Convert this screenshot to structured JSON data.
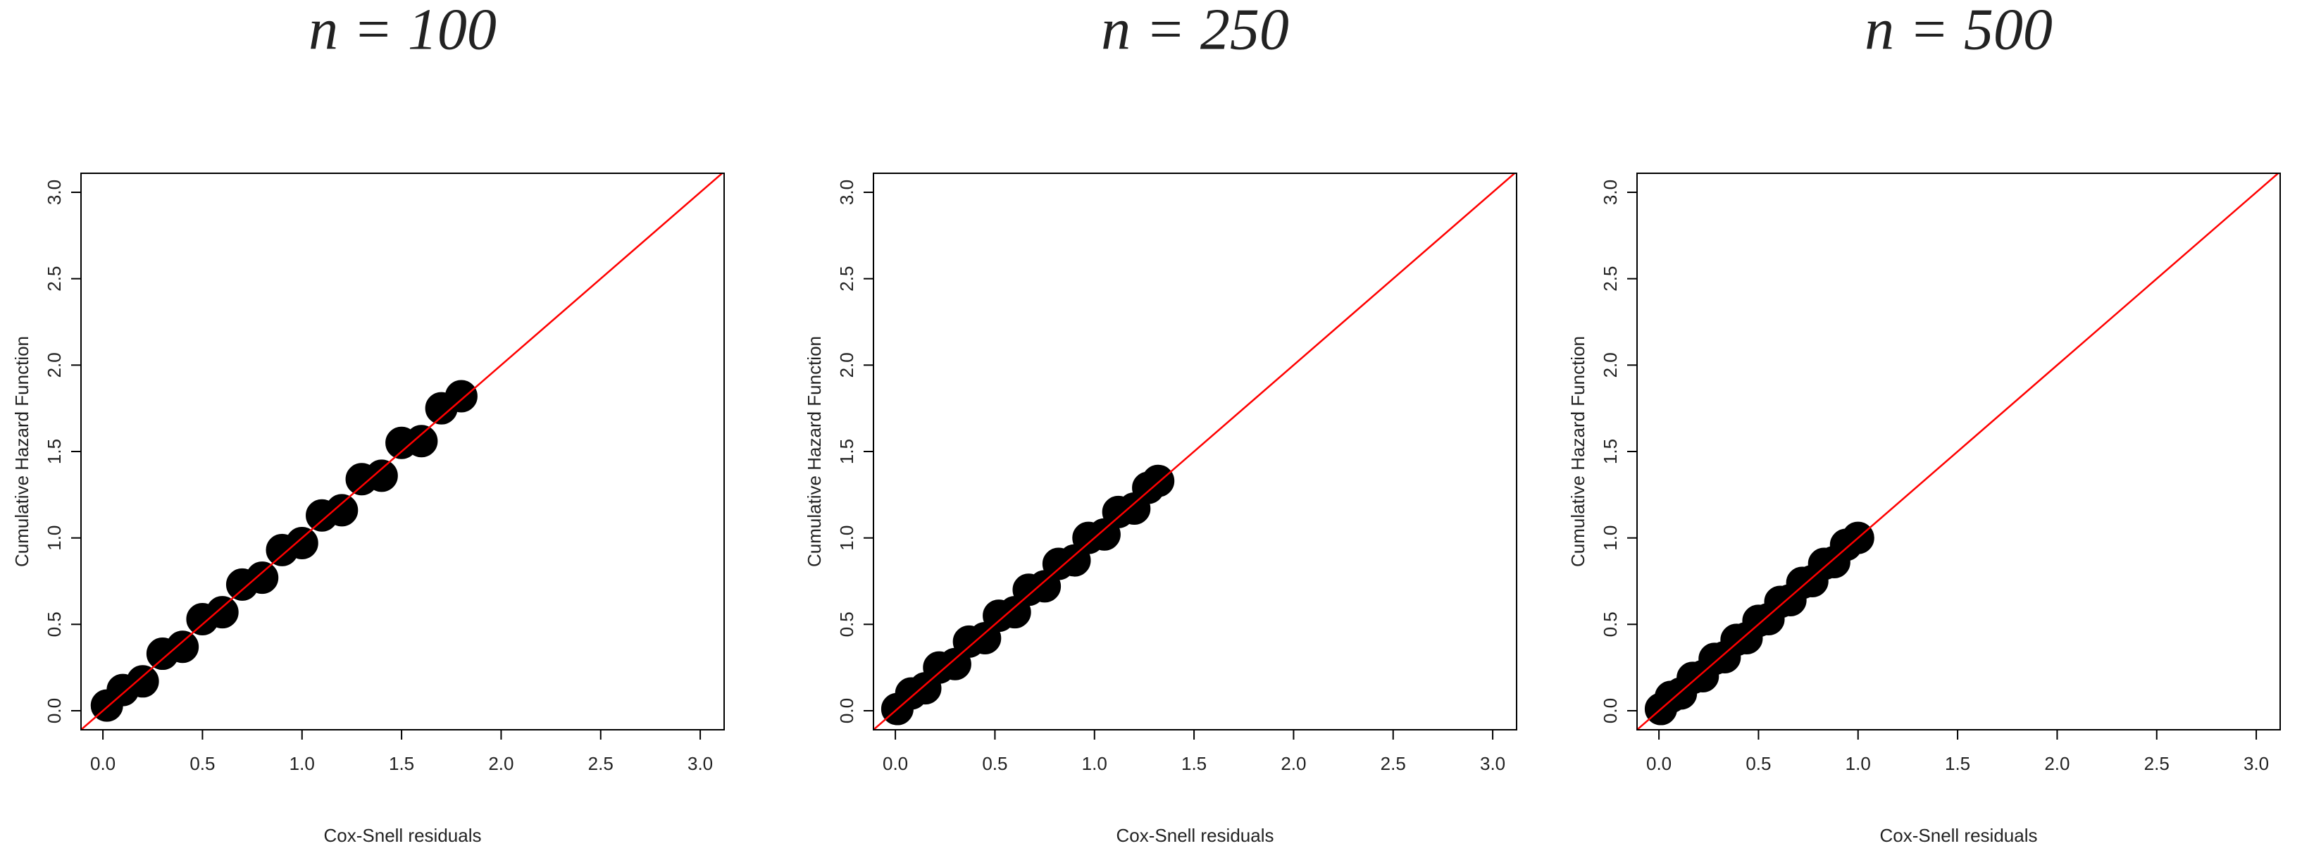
{
  "chart_data": [
    {
      "type": "scatter",
      "title": "n = 100",
      "x_label": "Cox-Snell residuals",
      "y_label": "Cumulative Hazard Function",
      "x": [
        0.02,
        0.1,
        0.2,
        0.3,
        0.4,
        0.5,
        0.6,
        0.7,
        0.8,
        0.9,
        1.0,
        1.1,
        1.2,
        1.3,
        1.4,
        1.5,
        1.6,
        1.7,
        1.8
      ],
      "y": [
        0.03,
        0.12,
        0.17,
        0.33,
        0.37,
        0.53,
        0.57,
        0.73,
        0.77,
        0.93,
        0.97,
        1.13,
        1.16,
        1.34,
        1.36,
        1.55,
        1.56,
        1.75,
        1.82
      ],
      "color": "#000000",
      "reference_line_color": "#ff0000",
      "xlim": [
        -0.11,
        3.12
      ],
      "ylim": [
        -0.11,
        3.11
      ],
      "xticks": [
        {
          "value": 0,
          "label": "0.0"
        },
        0.5,
        {
          "value": 1,
          "label": "1.0"
        },
        1.5,
        {
          "value": 2,
          "label": "2.0"
        },
        2.5,
        {
          "value": 3,
          "label": "3.0"
        }
      ],
      "yticks": [
        {
          "value": 0,
          "label": "0.0"
        },
        0.5,
        {
          "value": 1,
          "label": "1.0"
        },
        1.5,
        {
          "value": 2,
          "label": "2.0"
        },
        2.5,
        {
          "value": 3,
          "label": "3.0"
        }
      ]
    },
    {
      "type": "scatter",
      "title": "n = 250",
      "x_label": "Cox-Snell residuals",
      "y_label": "Cumulative Hazard Function",
      "x": [
        0.01,
        0.08,
        0.15,
        0.22,
        0.3,
        0.37,
        0.45,
        0.52,
        0.6,
        0.67,
        0.75,
        0.82,
        0.9,
        0.97,
        1.05,
        1.12,
        1.2,
        1.27,
        1.32
      ],
      "y": [
        0.01,
        0.1,
        0.13,
        0.25,
        0.27,
        0.4,
        0.42,
        0.55,
        0.57,
        0.7,
        0.72,
        0.85,
        0.87,
        1.0,
        1.02,
        1.15,
        1.17,
        1.29,
        1.33
      ],
      "color": "#000000",
      "reference_line_color": "#ff0000",
      "xlim": [
        -0.11,
        3.12
      ],
      "ylim": [
        -0.11,
        3.11
      ],
      "xticks": [
        {
          "value": 0,
          "label": "0.0"
        },
        0.5,
        {
          "value": 1,
          "label": "1.0"
        },
        1.5,
        {
          "value": 2,
          "label": "2.0"
        },
        2.5,
        {
          "value": 3,
          "label": "3.0"
        }
      ],
      "yticks": [
        {
          "value": 0,
          "label": "0.0"
        },
        0.5,
        {
          "value": 1,
          "label": "1.0"
        },
        1.5,
        {
          "value": 2,
          "label": "2.0"
        },
        2.5,
        {
          "value": 3,
          "label": "3.0"
        }
      ]
    },
    {
      "type": "scatter",
      "title": "n = 500",
      "x_label": "Cox-Snell residuals",
      "y_label": "Cumulative Hazard Function",
      "x": [
        0.01,
        0.06,
        0.11,
        0.17,
        0.22,
        0.28,
        0.33,
        0.39,
        0.44,
        0.5,
        0.55,
        0.61,
        0.66,
        0.72,
        0.77,
        0.83,
        0.88,
        0.94,
        1.0
      ],
      "y": [
        0.01,
        0.08,
        0.1,
        0.19,
        0.2,
        0.3,
        0.31,
        0.41,
        0.42,
        0.52,
        0.53,
        0.63,
        0.64,
        0.74,
        0.75,
        0.85,
        0.86,
        0.96,
        1.0
      ],
      "color": "#000000",
      "reference_line_color": "#ff0000",
      "xlim": [
        -0.11,
        3.12
      ],
      "ylim": [
        -0.11,
        3.11
      ],
      "xticks": [
        {
          "value": 0,
          "label": "0.0"
        },
        0.5,
        {
          "value": 1,
          "label": "1.0"
        },
        1.5,
        {
          "value": 2,
          "label": "2.0"
        },
        2.5,
        {
          "value": 3,
          "label": "3.0"
        }
      ],
      "yticks": [
        {
          "value": 0,
          "label": "0.0"
        },
        0.5,
        {
          "value": 1,
          "label": "1.0"
        },
        1.5,
        {
          "value": 2,
          "label": "2.0"
        },
        2.5,
        {
          "value": 3,
          "label": "3.0"
        }
      ]
    }
  ]
}
